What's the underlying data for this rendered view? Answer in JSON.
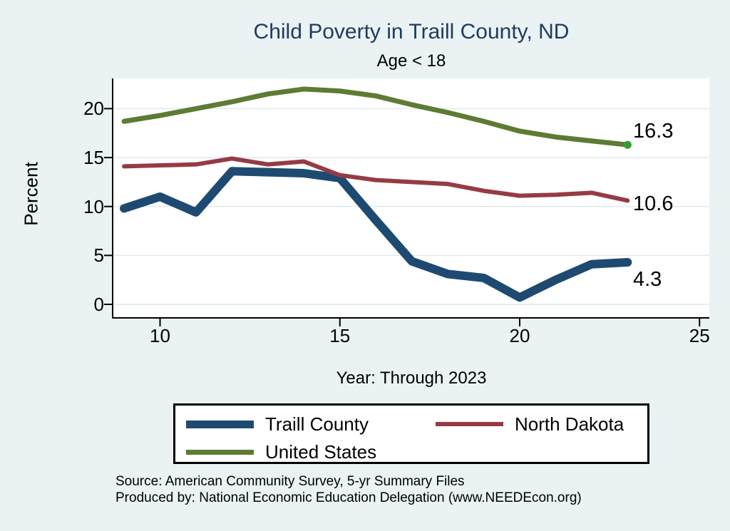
{
  "chart_data": {
    "type": "line",
    "title": "Child Poverty in Traill County, ND",
    "subtitle": "Age < 18",
    "xlabel": "Year: Through 2023",
    "ylabel": "Percent",
    "x": [
      9,
      10,
      11,
      12,
      13,
      14,
      15,
      16,
      17,
      18,
      19,
      20,
      21,
      22,
      23
    ],
    "x_axis_ticks": [
      10,
      15,
      20,
      25
    ],
    "y_axis_ticks": [
      0,
      5,
      10,
      15,
      20
    ],
    "xlim": [
      8.7,
      25.3
    ],
    "ylim": [
      -1.4,
      23.1
    ],
    "grid": "horizontal",
    "legend_position": "bottom",
    "series": [
      {
        "name": "Traill County",
        "color": "#1e4a72",
        "values": [
          9.8,
          11.0,
          9.4,
          13.6,
          13.5,
          13.4,
          12.9,
          8.6,
          4.4,
          3.1,
          2.7,
          0.7,
          2.5,
          4.1,
          4.3
        ],
        "end_label": "4.3"
      },
      {
        "name": "North Dakota",
        "color": "#963b44",
        "values": [
          14.1,
          14.2,
          14.3,
          14.9,
          14.3,
          14.6,
          13.2,
          12.7,
          12.5,
          12.3,
          11.6,
          11.1,
          11.2,
          11.4,
          10.6
        ],
        "end_label": "10.6"
      },
      {
        "name": "United States",
        "color": "#5d7b33",
        "values": [
          18.7,
          19.3,
          20.0,
          20.7,
          21.5,
          22.0,
          21.8,
          21.3,
          20.4,
          19.6,
          18.7,
          17.7,
          17.1,
          16.7,
          16.3
        ],
        "end_label": "16.3",
        "end_marker_color": "#2f9e2f"
      }
    ]
  },
  "colors": {
    "background": "#eaf2f3",
    "plot_background": "#ffffff",
    "gridline": "#dde9ec",
    "axis": "#000000",
    "title": "#213a5e"
  },
  "source": {
    "line1": "Source: American Community Survey, 5-yr Summary Files",
    "line2": "Produced by: National Economic Education Delegation (www.NEEDEcon.org)"
  }
}
